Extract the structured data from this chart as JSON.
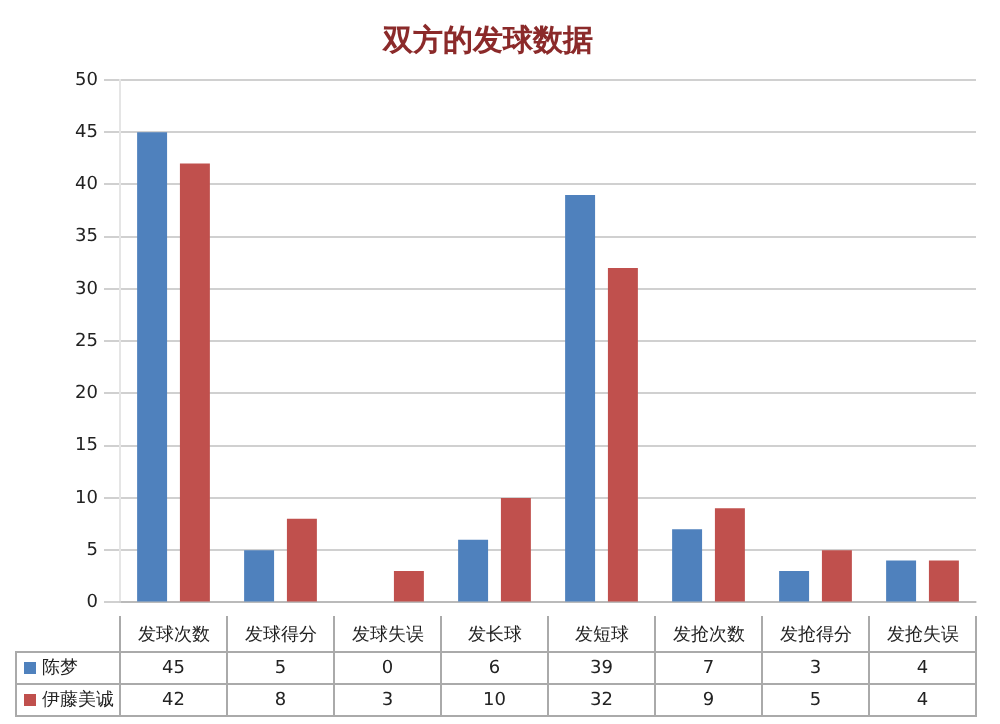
{
  "chart_data": {
    "type": "bar",
    "title": "双方的发球数据",
    "categories": [
      "发球次数",
      "发球得分",
      "发球失误",
      "发长球",
      "发短球",
      "发抢次数",
      "发抢得分",
      "发抢失误"
    ],
    "series": [
      {
        "name": "陈梦",
        "color": "#4f81bd",
        "values": [
          45,
          5,
          0,
          6,
          39,
          7,
          3,
          4
        ]
      },
      {
        "name": "伊藤美诚",
        "color": "#c0504d",
        "values": [
          42,
          8,
          3,
          10,
          32,
          9,
          5,
          4
        ]
      }
    ],
    "ylim": [
      0,
      50
    ],
    "yticks": [
      0,
      5,
      10,
      15,
      20,
      25,
      30,
      35,
      40,
      45,
      50
    ],
    "grid": "y",
    "legend": "bottom",
    "data_labels": true
  }
}
